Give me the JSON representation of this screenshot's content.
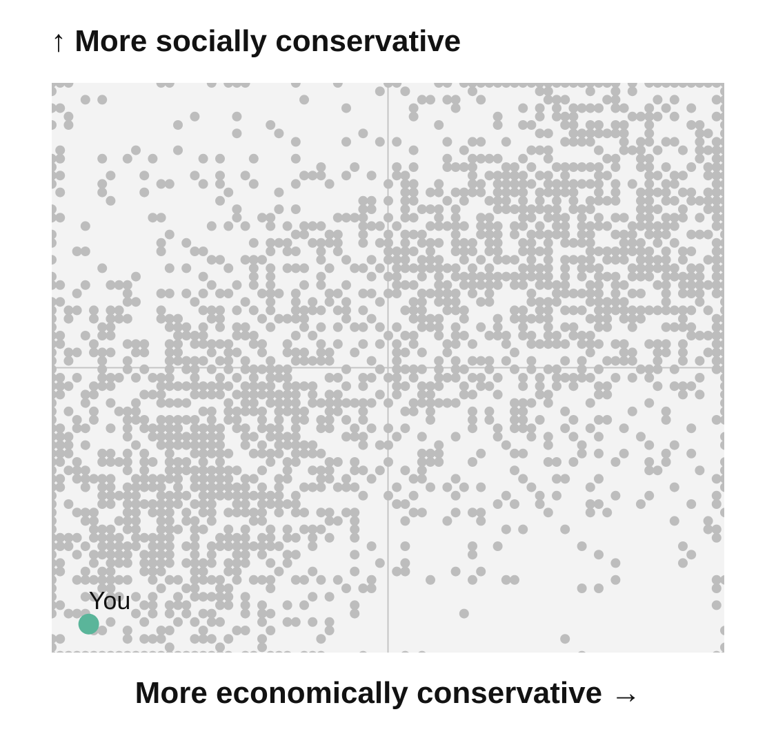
{
  "chart_data": {
    "type": "scatter",
    "title": "",
    "ylabel": "↑ More socially conservative",
    "xlabel": "More economically conservative →",
    "xlim": [
      -1,
      1
    ],
    "ylim": [
      -1,
      1
    ],
    "quadrant_lines": {
      "x": 0,
      "y": 0
    },
    "grid": false,
    "colors": {
      "background": "#f3f3f3",
      "points": "#bdbdbd",
      "highlight": "#5ab59a",
      "axis_lines": "#c4c4c4"
    },
    "highlight_point": {
      "label": "You",
      "x": -0.89,
      "y": -0.9
    },
    "point_clusters": [
      {
        "name": "liberal-cluster",
        "center": [
          -0.62,
          -0.45
        ],
        "spread": [
          0.3,
          0.36
        ],
        "count": 1100
      },
      {
        "name": "conservative-cluster",
        "center": [
          0.62,
          0.48
        ],
        "spread": [
          0.3,
          0.34
        ],
        "count": 1000
      },
      {
        "name": "middle-band",
        "center": [
          0.0,
          0.12
        ],
        "spread": [
          0.55,
          0.34
        ],
        "count": 650
      },
      {
        "name": "left-edge",
        "center": [
          -0.99,
          0.0
        ],
        "spread": [
          0.02,
          0.95
        ],
        "count": 80
      },
      {
        "name": "right-edge",
        "center": [
          0.99,
          0.2
        ],
        "spread": [
          0.02,
          0.75
        ],
        "count": 70
      },
      {
        "name": "sparse-upper-left",
        "center": [
          -0.4,
          0.55
        ],
        "spread": [
          0.35,
          0.25
        ],
        "count": 90
      },
      {
        "name": "sparse-lower-right",
        "center": [
          0.45,
          -0.45
        ],
        "spread": [
          0.35,
          0.3
        ],
        "count": 70
      }
    ]
  }
}
